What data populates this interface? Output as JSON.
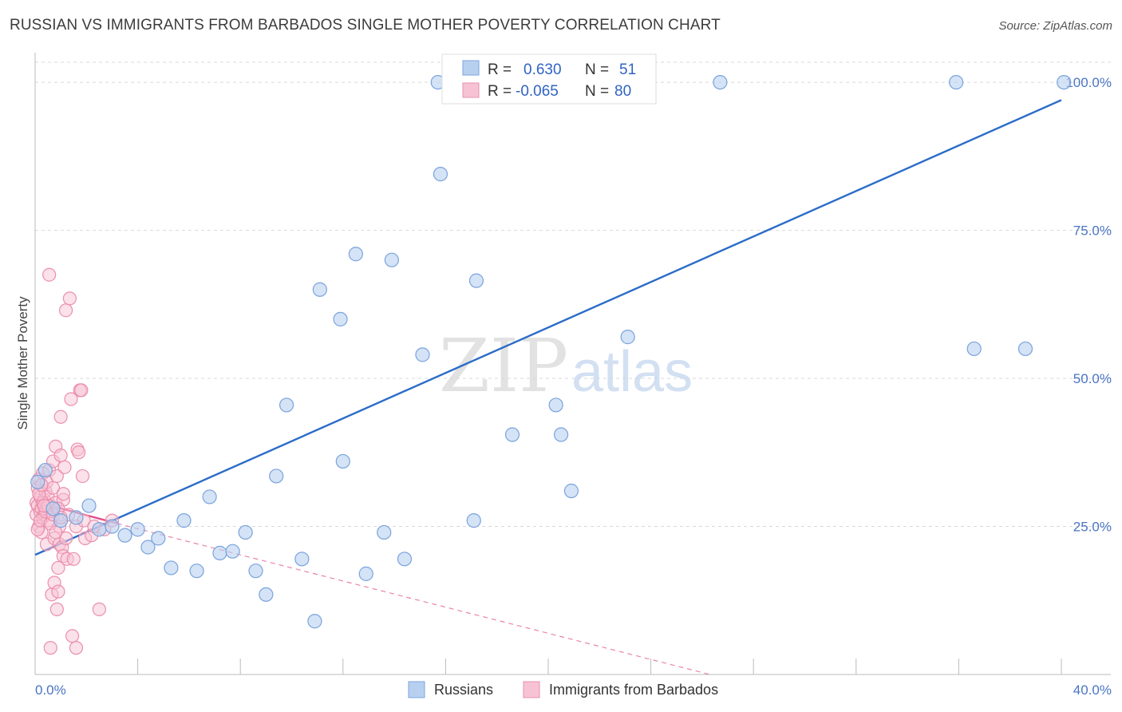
{
  "title": "RUSSIAN VS IMMIGRANTS FROM BARBADOS SINGLE MOTHER POVERTY CORRELATION CHART",
  "source": "Source: ZipAtlas.com",
  "watermark": {
    "zip": "ZIP",
    "atlas": "atlas"
  },
  "colors": {
    "blue_fill": "#b8d0f0",
    "blue_stroke": "#7aa3dc",
    "blue_line": "#2b6cc8",
    "pink_fill": "#f7c3d4",
    "pink_stroke": "#ea8fae",
    "pink_line": "#e0508a",
    "grid": "#d9d9d9",
    "tick_text": "#4a74c4"
  },
  "legend_top": {
    "rows": [
      {
        "r_label": "R =",
        "r_value": "0.630",
        "n_label": "N =",
        "n_value": "51"
      },
      {
        "r_label": "R =",
        "r_value": "-0.065",
        "n_label": "N =",
        "n_value": "80"
      }
    ]
  },
  "legend_bottom": [
    "Russians",
    "Immigrants from Barbados"
  ],
  "chart_data": {
    "type": "scatter",
    "xlabel": "",
    "ylabel": "Single Mother Poverty",
    "xlim": [
      0,
      40
    ],
    "ylim": [
      0,
      105
    ],
    "x_tick_labels": [
      "0.0%",
      "40.0%"
    ],
    "y_ticks": [
      25,
      50,
      75,
      100
    ],
    "y_tick_labels": [
      "25.0%",
      "50.0%",
      "75.0%",
      "100.0%"
    ],
    "grid": true,
    "series": [
      {
        "name": "Russians",
        "trend": {
          "x": [
            0,
            40
          ],
          "y": [
            20.2,
            97.0
          ],
          "dashed_to": null
        },
        "points": [
          [
            0.1,
            32.5
          ],
          [
            0.4,
            34.5
          ],
          [
            0.7,
            28.0
          ],
          [
            1.0,
            26.0
          ],
          [
            1.6,
            26.5
          ],
          [
            2.1,
            28.5
          ],
          [
            2.5,
            24.5
          ],
          [
            3.0,
            25.0
          ],
          [
            3.5,
            23.5
          ],
          [
            4.0,
            24.5
          ],
          [
            4.4,
            21.5
          ],
          [
            4.8,
            23.0
          ],
          [
            5.3,
            18.0
          ],
          [
            5.8,
            26.0
          ],
          [
            6.3,
            17.5
          ],
          [
            6.8,
            30.0
          ],
          [
            7.2,
            20.5
          ],
          [
            7.7,
            20.8
          ],
          [
            8.2,
            24.0
          ],
          [
            8.6,
            17.5
          ],
          [
            9.0,
            13.5
          ],
          [
            9.4,
            33.5
          ],
          [
            9.8,
            45.5
          ],
          [
            10.4,
            19.5
          ],
          [
            10.9,
            9.0
          ],
          [
            11.1,
            65.0
          ],
          [
            11.9,
            60.0
          ],
          [
            12.0,
            36.0
          ],
          [
            12.5,
            71.0
          ],
          [
            12.9,
            17.0
          ],
          [
            13.6,
            24.0
          ],
          [
            13.9,
            70.0
          ],
          [
            14.4,
            19.5
          ],
          [
            15.1,
            54.0
          ],
          [
            15.7,
            100.0
          ],
          [
            15.8,
            84.5
          ],
          [
            16.3,
            100.0
          ],
          [
            17.1,
            26.0
          ],
          [
            17.2,
            66.5
          ],
          [
            18.6,
            40.5
          ],
          [
            20.2,
            100.0
          ],
          [
            20.3,
            45.5
          ],
          [
            20.5,
            40.5
          ],
          [
            20.9,
            31.0
          ],
          [
            22.0,
            100.0
          ],
          [
            23.1,
            57.0
          ],
          [
            26.7,
            100.0
          ],
          [
            35.9,
            100.0
          ],
          [
            36.6,
            55.0
          ],
          [
            38.6,
            55.0
          ],
          [
            40.1,
            100.0
          ]
        ]
      },
      {
        "name": "Immigrants from Barbados",
        "trend": {
          "x": [
            0,
            3.2
          ],
          "y": [
            29.2,
            25.5
          ],
          "dashed_to": [
            26.3,
            0
          ]
        },
        "points": [
          [
            0.05,
            29.0
          ],
          [
            0.05,
            27.0
          ],
          [
            0.1,
            31.5
          ],
          [
            0.1,
            28.5
          ],
          [
            0.15,
            25.0
          ],
          [
            0.15,
            33.0
          ],
          [
            0.2,
            27.5
          ],
          [
            0.2,
            30.0
          ],
          [
            0.25,
            24.0
          ],
          [
            0.25,
            28.0
          ],
          [
            0.3,
            34.0
          ],
          [
            0.3,
            26.5
          ],
          [
            0.35,
            29.5
          ],
          [
            0.35,
            27.0
          ],
          [
            0.4,
            31.0
          ],
          [
            0.4,
            28.0
          ],
          [
            0.45,
            32.5
          ],
          [
            0.45,
            22.0
          ],
          [
            0.5,
            30.0
          ],
          [
            0.5,
            26.0
          ],
          [
            0.55,
            67.5
          ],
          [
            0.55,
            34.5
          ],
          [
            0.6,
            28.5
          ],
          [
            0.6,
            4.5
          ],
          [
            0.65,
            27.5
          ],
          [
            0.65,
            13.5
          ],
          [
            0.7,
            31.5
          ],
          [
            0.7,
            36.0
          ],
          [
            0.75,
            15.5
          ],
          [
            0.75,
            23.0
          ],
          [
            0.8,
            38.5
          ],
          [
            0.8,
            29.0
          ],
          [
            0.85,
            11.0
          ],
          [
            0.85,
            33.5
          ],
          [
            0.9,
            18.0
          ],
          [
            0.9,
            14.0
          ],
          [
            0.95,
            22.0
          ],
          [
            0.95,
            25.0
          ],
          [
            1.0,
            43.5
          ],
          [
            1.0,
            37.0
          ],
          [
            1.05,
            21.5
          ],
          [
            1.1,
            29.5
          ],
          [
            1.1,
            20.0
          ],
          [
            1.15,
            35.0
          ],
          [
            1.2,
            61.5
          ],
          [
            1.2,
            23.0
          ],
          [
            1.25,
            19.5
          ],
          [
            1.3,
            27.0
          ],
          [
            1.35,
            63.5
          ],
          [
            1.4,
            46.5
          ],
          [
            1.45,
            6.5
          ],
          [
            1.5,
            19.5
          ],
          [
            1.6,
            25.0
          ],
          [
            1.6,
            4.5
          ],
          [
            1.65,
            38.0
          ],
          [
            1.7,
            37.5
          ],
          [
            1.75,
            48.0
          ],
          [
            1.8,
            48.0
          ],
          [
            1.85,
            33.5
          ],
          [
            1.9,
            26.0
          ],
          [
            1.95,
            23.0
          ],
          [
            2.2,
            23.5
          ],
          [
            2.3,
            25.0
          ],
          [
            2.5,
            11.0
          ],
          [
            2.7,
            24.5
          ],
          [
            3.0,
            26.0
          ],
          [
            0.1,
            24.5
          ],
          [
            0.2,
            26.0
          ],
          [
            0.3,
            29.0
          ],
          [
            0.4,
            27.5
          ],
          [
            0.5,
            28.5
          ],
          [
            0.6,
            25.5
          ],
          [
            0.7,
            27.0
          ],
          [
            0.8,
            24.0
          ],
          [
            0.9,
            28.0
          ],
          [
            1.0,
            26.5
          ],
          [
            1.1,
            30.5
          ],
          [
            0.15,
            30.5
          ],
          [
            0.25,
            32.0
          ],
          [
            0.35,
            28.5
          ]
        ]
      }
    ]
  }
}
